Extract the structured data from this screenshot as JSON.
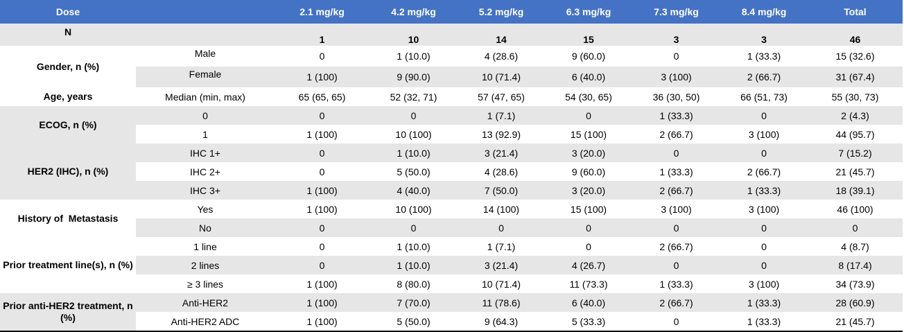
{
  "header": {
    "dose_label": "Dose",
    "columns": [
      "2.1 mg/kg",
      "4.2 mg/kg",
      "5.2 mg/kg",
      "6.3 mg/kg",
      "7.3 mg/kg",
      "8.4 mg/kg",
      "Total"
    ]
  },
  "n_row": {
    "label": "N",
    "values": [
      "1",
      "10",
      "14",
      "15",
      "3",
      "3",
      "46"
    ]
  },
  "gender": {
    "label": "Gender, n (%)",
    "rows": [
      {
        "sub": "Male",
        "values": [
          "0",
          "1 (10.0)",
          "4 (28.6)",
          "9 (60.0)",
          "0",
          "1 (33.3)",
          "15 (32.6)"
        ]
      },
      {
        "sub": "Female",
        "values": [
          "1 (100)",
          "9 (90.0)",
          "10 (71.4)",
          "6 (40.0)",
          "3 (100)",
          "2 (66.7)",
          "31 (67.4)"
        ]
      }
    ]
  },
  "age": {
    "label": "Age, years",
    "rows": [
      {
        "sub": "Median (min, max)",
        "values": [
          "65 (65, 65)",
          "52 (32, 71)",
          "57 (47, 65)",
          "54 (30, 65)",
          "36 (30, 50)",
          "66 (51, 73)",
          "55 (30, 73)"
        ]
      }
    ]
  },
  "ecog": {
    "label": "ECOG, n (%)",
    "rows": [
      {
        "sub": "0",
        "values": [
          "0",
          "0",
          "1 (7.1)",
          "0",
          "1 (33.3)",
          "0",
          "2 (4.3)"
        ]
      },
      {
        "sub": "1",
        "values": [
          "1 (100)",
          "10 (100)",
          "13 (92.9)",
          "15 (100)",
          "2 (66.7)",
          "3 (100)",
          "44 (95.7)"
        ]
      }
    ]
  },
  "her2": {
    "label": "HER2 (IHC), n (%)",
    "rows": [
      {
        "sub": "IHC 1+",
        "values": [
          "0",
          "1 (10.0)",
          "3 (21.4)",
          "3 (20.0)",
          "0",
          "0",
          "7 (15.2)"
        ]
      },
      {
        "sub": "IHC 2+",
        "values": [
          "0",
          "5 (50.0)",
          "4 (28.6)",
          "9 (60.0)",
          "1 (33.3)",
          "2 (66.7)",
          "21 (45.7)"
        ]
      },
      {
        "sub": "IHC 3+",
        "values": [
          "1 (100)",
          "4 (40.0)",
          "7 (50.0)",
          "3 (20.0)",
          "2 (66.7)",
          "1 (33.3)",
          "18 (39.1)"
        ]
      }
    ]
  },
  "metastasis": {
    "label": "History of  Metastasis",
    "rows": [
      {
        "sub": "Yes",
        "values": [
          "1 (100)",
          "10 (100)",
          "14 (100)",
          "15 (100)",
          "3 (100)",
          "3 (100)",
          "46 (100)"
        ]
      },
      {
        "sub": "No",
        "values": [
          "0",
          "0",
          "0",
          "0",
          "0",
          "0",
          "0"
        ]
      }
    ]
  },
  "prior_lines": {
    "label": "Prior treatment line(s), n (%)",
    "rows": [
      {
        "sub": "1 line",
        "values": [
          "0",
          "1 (10.0)",
          "1 (7.1)",
          "0",
          "2 (66.7)",
          "0",
          "4 (8.7)"
        ]
      },
      {
        "sub": "2 lines",
        "values": [
          "0",
          "1 (10.0)",
          "3 (21.4)",
          "4 (26.7)",
          "0",
          "0",
          "8 (17.4)"
        ]
      },
      {
        "sub": "≥ 3 lines",
        "values": [
          "1 (100)",
          "8 (80.0)",
          "10 (71.4)",
          "11 (73.3)",
          "1 (33.3)",
          "3 (100)",
          "34 (73.9)"
        ]
      }
    ]
  },
  "prior_her2": {
    "label": "Prior anti-HER2 treatment, n (%)",
    "rows": [
      {
        "sub": "Anti-HER2",
        "values": [
          "1 (100)",
          "7 (70.0)",
          "11 (78.6)",
          "6 (40.0)",
          "2 (66.7)",
          "1 (33.3)",
          "28 (60.9)"
        ]
      },
      {
        "sub": "Anti-HER2 ADC",
        "values": [
          "1 (100)",
          "5 (50.0)",
          "9 (64.3)",
          "5 (33.3)",
          "0",
          "1 (33.3)",
          "21 (45.7)"
        ]
      }
    ]
  },
  "colors": {
    "header_bg": "#4472c4",
    "header_text": "#ffffff",
    "shade": "#e6e6e6"
  }
}
